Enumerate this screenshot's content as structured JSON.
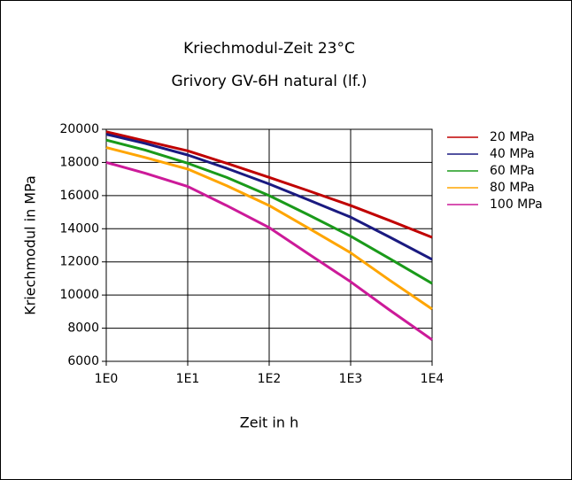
{
  "chart_data": {
    "type": "line",
    "title": "Kriechmodul-Zeit 23°C",
    "subtitle": "Grivory GV-6H natural (lf.)",
    "x_label": "Zeit in h",
    "y_label": "Kriechmodul in MPa",
    "x": [
      1,
      3,
      10,
      30,
      100,
      300,
      1000,
      3000,
      10000
    ],
    "xscale": "log",
    "xlim": [
      1,
      10000
    ],
    "xticks": [
      {
        "value": 1,
        "label": "1E0"
      },
      {
        "value": 10,
        "label": "1E1"
      },
      {
        "value": 100,
        "label": "1E2"
      },
      {
        "value": 1000,
        "label": "1E3"
      },
      {
        "value": 10000,
        "label": "1E4"
      }
    ],
    "ylim": [
      6000,
      20000
    ],
    "yticks": [
      6000,
      8000,
      10000,
      12000,
      14000,
      16000,
      18000,
      20000
    ],
    "grid": true,
    "legend": "right",
    "series": [
      {
        "name": "20 MPa",
        "color": "#c00000",
        "values": [
          19850,
          19300,
          18700,
          17950,
          17100,
          16300,
          15400,
          14500,
          13480
        ]
      },
      {
        "name": "40 MPa",
        "color": "#1a1a80",
        "values": [
          19700,
          19150,
          18450,
          17650,
          16700,
          15750,
          14700,
          13500,
          12150
        ]
      },
      {
        "name": "60 MPa",
        "color": "#1a9a1a",
        "values": [
          19350,
          18750,
          17950,
          17100,
          16000,
          14850,
          13550,
          12200,
          10700
        ]
      },
      {
        "name": "80 MPa",
        "color": "#ffa500",
        "values": [
          18900,
          18300,
          17600,
          16600,
          15400,
          14050,
          12550,
          10900,
          9150
        ]
      },
      {
        "name": "100 MPa",
        "color": "#cc1a99",
        "values": [
          18000,
          17350,
          16550,
          15400,
          14070,
          12500,
          10800,
          9100,
          7300
        ]
      }
    ]
  }
}
